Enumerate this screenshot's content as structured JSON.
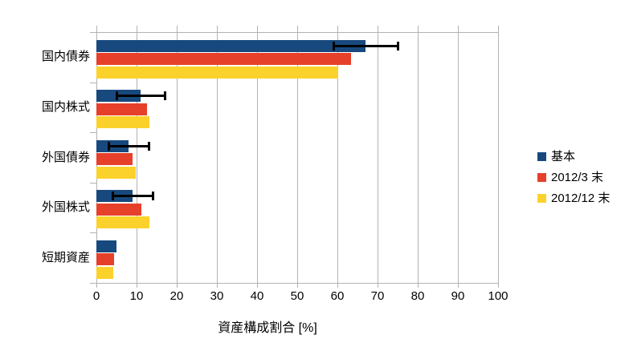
{
  "figure": {
    "background": "#FFFFFF",
    "grid_color": "#B3B3B3",
    "error_bar_color": "#000000"
  },
  "chart_data": {
    "type": "bar",
    "orientation": "horizontal",
    "title": "",
    "xlabel": "資産構成割合 [%]",
    "ylabel": "",
    "xlim": [
      0,
      100
    ],
    "x_ticks": [
      0,
      10,
      20,
      30,
      40,
      50,
      60,
      70,
      80,
      90,
      100
    ],
    "grid": "vertical",
    "legend_position": "right",
    "categories": [
      "国内債券",
      "国内株式",
      "外国債券",
      "外国株式",
      "短期資産"
    ],
    "series": [
      {
        "name": "基本",
        "color": "#17497E",
        "values": [
          67,
          11,
          8,
          9,
          5
        ],
        "error_bars": [
          {
            "low": 59,
            "high": 75
          },
          {
            "low": 5,
            "high": 17
          },
          {
            "low": 3,
            "high": 13
          },
          {
            "low": 4,
            "high": 14
          },
          null
        ]
      },
      {
        "name": "2012/3 末",
        "color": "#E6402A",
        "values": [
          63.3,
          12.6,
          8.9,
          11.2,
          4.4
        ]
      },
      {
        "name": "2012/12 末",
        "color": "#FBD22B",
        "values": [
          60.1,
          13.1,
          9.7,
          13.1,
          4.1
        ]
      }
    ]
  }
}
